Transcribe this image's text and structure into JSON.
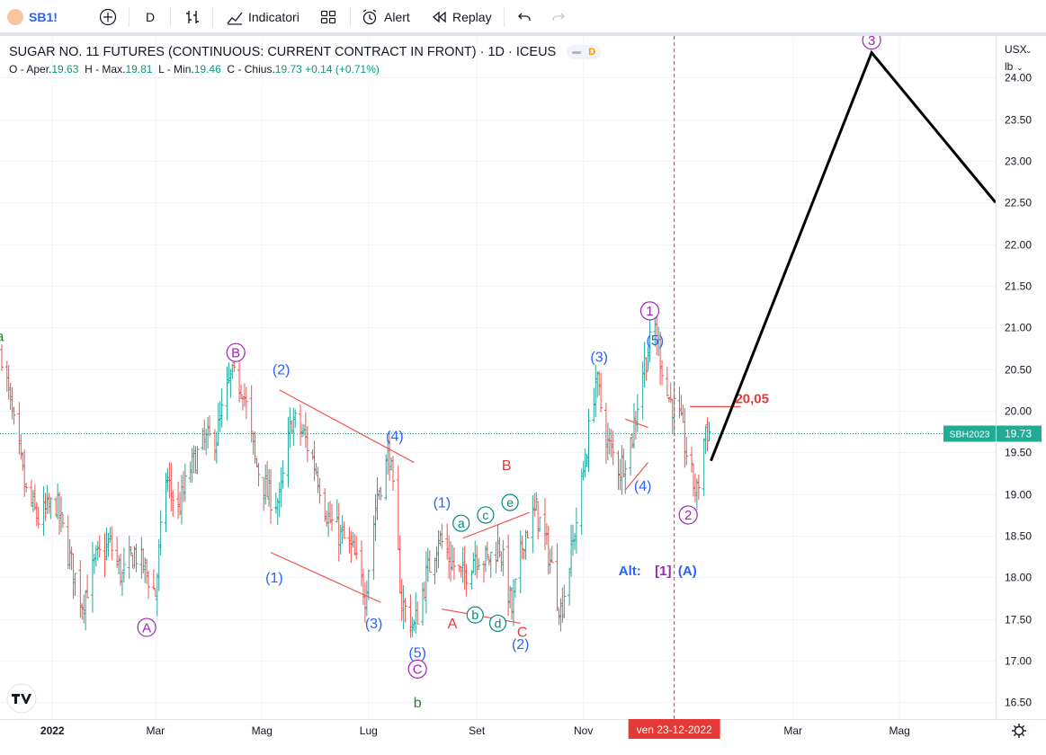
{
  "toolbar": {
    "symbol": "SB1!",
    "interval": "D",
    "indicators_label": "Indicatori",
    "alert_label": "Alert",
    "replay_label": "Replay"
  },
  "legend": {
    "title": "SUGAR NO. 11 FUTURES (CONTINUOUS: CURRENT CONTRACT IN FRONT) · 1D · ICEUS",
    "badge": "D",
    "o_label": "O",
    "o_sep": "- Aper.",
    "open": "19.63",
    "h_label": "H",
    "h_sep": "- Max.",
    "high": "19.81",
    "l_label": "L",
    "l_sep": "- Min.",
    "low": "19.46",
    "c_label": "C",
    "c_sep": "- Chius.",
    "close": "19.73",
    "change": "+0.14 (+0.71%)"
  },
  "price_scale": {
    "currency": "USX",
    "unit": "lb"
  },
  "time_axis": {
    "labels": [
      {
        "text": "2022",
        "bold": true
      },
      {
        "text": "Mar"
      },
      {
        "text": "Mag"
      },
      {
        "text": "Lug"
      },
      {
        "text": "Set"
      },
      {
        "text": "Nov"
      },
      {
        "text": "Mar"
      },
      {
        "text": "Mag"
      }
    ],
    "cursor_date": "ven 23-12-2022"
  },
  "colors": {
    "up": "#26a69a",
    "down": "#ef5350",
    "blue_wave": "#2962ff",
    "purple_wave": "#9c27b0",
    "green_wave": "#2e7d32",
    "red_wave": "#e53935",
    "projection": "#000000",
    "current_price_bg": "#22ab94"
  },
  "chart_data": {
    "type": "candlestick",
    "title": "SUGAR NO. 11 FUTURES (CONTINUOUS: CURRENT CONTRACT IN FRONT) · 1D · ICEUS",
    "y_ticks": [
      "16.50",
      "17.00",
      "17.50",
      "18.00",
      "18.50",
      "19.00",
      "19.50",
      "20.00",
      "20.50",
      "21.00",
      "21.50",
      "22.00",
      "22.50",
      "23.00",
      "23.50",
      "24.00"
    ],
    "ylim": [
      16.3,
      24.5
    ],
    "xlim": [
      "2021-12-02",
      "2023-06-25"
    ],
    "last_price": 19.73,
    "last_price_label": "SBH2023",
    "last_price_text": "19.73",
    "price_path": [
      [
        "2021-12-03",
        20.7
      ],
      [
        "2021-12-10",
        19.8
      ],
      [
        "2021-12-17",
        19.0
      ],
      [
        "2021-12-24",
        18.7
      ],
      [
        "2022-01-03",
        18.9
      ],
      [
        "2022-01-10",
        18.3
      ],
      [
        "2022-01-18",
        17.7
      ],
      [
        "2022-01-26",
        18.2
      ],
      [
        "2022-02-03",
        18.4
      ],
      [
        "2022-02-10",
        18.0
      ],
      [
        "2022-02-17",
        18.3
      ],
      [
        "2022-02-23",
        18.1
      ],
      [
        "2022-03-01",
        17.8
      ],
      [
        "2022-03-07",
        19.2
      ],
      [
        "2022-03-14",
        18.8
      ],
      [
        "2022-03-21",
        19.3
      ],
      [
        "2022-03-28",
        19.6
      ],
      [
        "2022-04-05",
        19.7
      ],
      [
        "2022-04-13",
        20.4
      ],
      [
        "2022-04-20",
        20.3
      ],
      [
        "2022-04-27",
        19.4
      ],
      [
        "2022-05-04",
        19.0
      ],
      [
        "2022-05-11",
        18.9
      ],
      [
        "2022-05-18",
        19.9
      ],
      [
        "2022-05-25",
        19.7
      ],
      [
        "2022-06-01",
        19.3
      ],
      [
        "2022-06-08",
        18.7
      ],
      [
        "2022-06-15",
        18.5
      ],
      [
        "2022-06-22",
        18.3
      ],
      [
        "2022-06-29",
        17.8
      ],
      [
        "2022-07-06",
        19.0
      ],
      [
        "2022-07-13",
        19.5
      ],
      [
        "2022-07-20",
        17.7
      ],
      [
        "2022-07-27",
        17.4
      ],
      [
        "2022-08-03",
        18.0
      ],
      [
        "2022-08-10",
        18.5
      ],
      [
        "2022-08-17",
        18.2
      ],
      [
        "2022-08-24",
        18.0
      ],
      [
        "2022-08-31",
        18.3
      ],
      [
        "2022-09-07",
        18.2
      ],
      [
        "2022-09-14",
        18.4
      ],
      [
        "2022-09-21",
        17.6
      ],
      [
        "2022-09-28",
        18.5
      ],
      [
        "2022-10-05",
        18.8
      ],
      [
        "2022-10-12",
        18.3
      ],
      [
        "2022-10-19",
        17.6
      ],
      [
        "2022-10-26",
        18.4
      ],
      [
        "2022-11-02",
        19.4
      ],
      [
        "2022-11-08",
        20.4
      ],
      [
        "2022-11-15",
        19.6
      ],
      [
        "2022-11-22",
        19.3
      ],
      [
        "2022-11-29",
        19.7
      ],
      [
        "2022-12-05",
        20.5
      ],
      [
        "2022-12-12",
        21.0
      ],
      [
        "2022-12-19",
        20.2
      ],
      [
        "2022-12-26",
        19.9
      ],
      [
        "2023-01-02",
        19.2
      ],
      [
        "2023-01-05",
        19.0
      ],
      [
        "2023-01-10",
        19.8
      ],
      [
        "2023-01-13",
        19.7
      ]
    ],
    "projection": [
      [
        "2023-01-13",
        19.4
      ],
      [
        "2023-04-15",
        24.3
      ],
      [
        "2023-06-25",
        22.5
      ]
    ],
    "horizontal_level": {
      "value": 20.05,
      "label": "20,05",
      "from": "2023-01-01",
      "to": "2023-01-30"
    },
    "cursor_line": "2022-12-23",
    "trendlines": [
      [
        [
          "2022-05-11",
          20.25
        ],
        [
          "2022-07-27",
          19.38
        ]
      ],
      [
        [
          "2022-05-06",
          18.3
        ],
        [
          "2022-07-08",
          17.7
        ]
      ],
      [
        [
          "2022-08-24",
          18.47
        ],
        [
          "2022-10-01",
          18.78
        ]
      ],
      [
        [
          "2022-08-12",
          17.62
        ],
        [
          "2022-09-26",
          17.45
        ]
      ],
      [
        [
          "2022-11-25",
          19.9
        ],
        [
          "2022-12-08",
          19.8
        ]
      ],
      [
        [
          "2022-11-25",
          19.05
        ],
        [
          "2022-12-08",
          19.38
        ]
      ]
    ],
    "wave_labels": [
      {
        "text": "a",
        "style": "green",
        "date": "2021-12-02",
        "price": 20.9
      },
      {
        "text": "A",
        "style": "purple-circle",
        "date": "2022-02-24",
        "price": 17.4
      },
      {
        "text": "B",
        "style": "purple-circle",
        "date": "2022-04-16",
        "price": 20.7
      },
      {
        "text": "(2)",
        "style": "blue",
        "date": "2022-05-12",
        "price": 20.5
      },
      {
        "text": "(1)",
        "style": "blue",
        "date": "2022-05-08",
        "price": 18.0
      },
      {
        "text": "(3)",
        "style": "blue",
        "date": "2022-07-04",
        "price": 17.45
      },
      {
        "text": "(4)",
        "style": "blue",
        "date": "2022-07-16",
        "price": 19.7
      },
      {
        "text": "(5)",
        "style": "blue",
        "date": "2022-07-29",
        "price": 17.1
      },
      {
        "text": "C",
        "style": "purple-circle",
        "date": "2022-07-29",
        "price": 16.9
      },
      {
        "text": "b",
        "style": "green",
        "date": "2022-07-29",
        "price": 16.5
      },
      {
        "text": "(1)",
        "style": "blue",
        "date": "2022-08-12",
        "price": 18.9
      },
      {
        "text": "a",
        "style": "teal-circle",
        "date": "2022-08-23",
        "price": 18.65
      },
      {
        "text": "c",
        "style": "teal-circle",
        "date": "2022-09-06",
        "price": 18.75
      },
      {
        "text": "e",
        "style": "teal-circle",
        "date": "2022-09-20",
        "price": 18.9
      },
      {
        "text": "B",
        "style": "red",
        "date": "2022-09-18",
        "price": 19.35
      },
      {
        "text": "A",
        "style": "red",
        "date": "2022-08-18",
        "price": 17.45
      },
      {
        "text": "b",
        "style": "teal-circle",
        "date": "2022-08-31",
        "price": 17.55
      },
      {
        "text": "d",
        "style": "teal-circle",
        "date": "2022-09-13",
        "price": 17.45
      },
      {
        "text": "C",
        "style": "red",
        "date": "2022-09-27",
        "price": 17.35
      },
      {
        "text": "(2)",
        "style": "blue",
        "date": "2022-09-26",
        "price": 17.2
      },
      {
        "text": "(3)",
        "style": "blue",
        "date": "2022-11-10",
        "price": 20.65
      },
      {
        "text": "(5)",
        "style": "blue",
        "date": "2022-12-12",
        "price": 20.85
      },
      {
        "text": "1",
        "style": "purple-circle",
        "date": "2022-12-09",
        "price": 21.2
      },
      {
        "text": "(4)",
        "style": "blue",
        "date": "2022-12-05",
        "price": 19.1
      },
      {
        "text": "2",
        "style": "purple-circle",
        "date": "2022-12-31",
        "price": 18.75
      },
      {
        "text": "3",
        "style": "purple-circle",
        "date": "2023-04-15",
        "price": 24.45
      }
    ],
    "alt_label": {
      "prefix": "Alt:",
      "mid": "[1]",
      "suffix": "(A)",
      "date": "2022-12-12",
      "price": 18.08
    }
  }
}
